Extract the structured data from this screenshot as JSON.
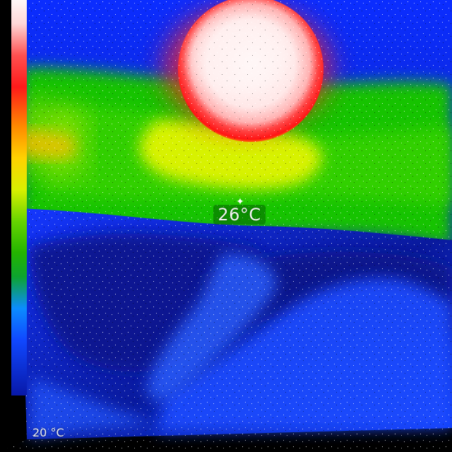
{
  "overlay": {
    "center_temperature": "26°C",
    "scale_min_label": "20 °C",
    "crosshair_icon": "crosshair-icon"
  },
  "palette": {
    "hot_white": "#fff6f6",
    "hot_red": "#ff2a2a",
    "orange": "#ff8a00",
    "yellow": "#e8f400",
    "green": "#23c400",
    "blue": "#1250ff",
    "dark_blue": "#0a1aa0",
    "background": "#000000"
  }
}
